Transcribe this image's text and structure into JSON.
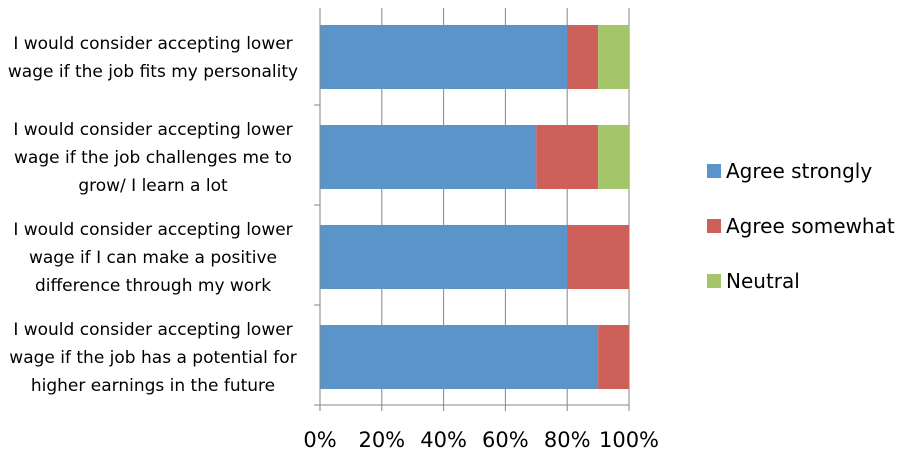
{
  "chart_data": {
    "type": "bar",
    "orientation": "horizontal",
    "stacked": true,
    "categories": [
      [
        "I would consider accepting lower",
        "wage if the job fits my personality"
      ],
      [
        "I would consider accepting lower",
        "wage if the job challenges me to",
        "grow/ I learn a lot"
      ],
      [
        "I would consider accepting lower",
        "wage if I can make a positive",
        "difference through my work"
      ],
      [
        "I would consider accepting lower",
        "wage if the job has a potential for",
        "higher earnings in the future"
      ]
    ],
    "series": [
      {
        "name": "Agree strongly",
        "color": "#5B94C8",
        "values": [
          80,
          70,
          80,
          90
        ]
      },
      {
        "name": "Agree somewhat",
        "color": "#CE605B",
        "values": [
          10,
          20,
          20,
          10
        ]
      },
      {
        "name": "Neutral",
        "color": "#A5C56A",
        "values": [
          10,
          10,
          0,
          0
        ]
      }
    ],
    "x_ticks": [
      "0%",
      "20%",
      "40%",
      "60%",
      "80%",
      "100%"
    ],
    "xlim": [
      0,
      100
    ],
    "grid": true,
    "legend_position": "right"
  }
}
